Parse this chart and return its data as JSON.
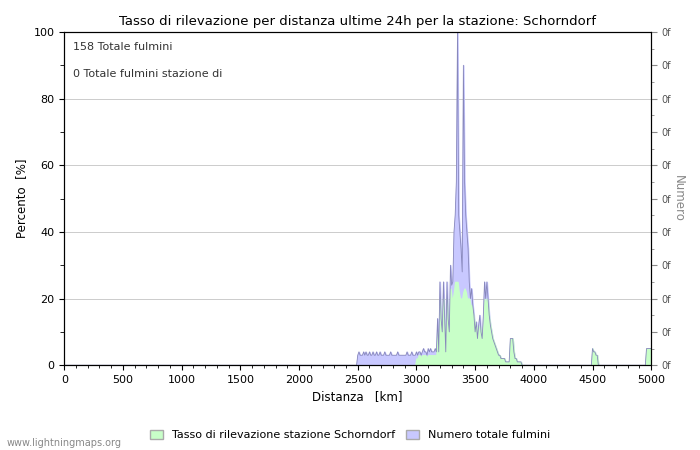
{
  "title": "Tasso di rilevazione per distanza ultime 24h per la stazione: Schorndorf",
  "xlabel": "Distanza   [km]",
  "ylabel_left": "Percento  [%]",
  "ylabel_right": "Numero",
  "annotation_line1": "158 Totale fulmini",
  "annotation_line2": "0 Totale fulmini stazione di",
  "xlim": [
    0,
    5000
  ],
  "ylim": [
    0,
    100
  ],
  "x_ticks": [
    0,
    500,
    1000,
    1500,
    2000,
    2500,
    3000,
    3500,
    4000,
    4500,
    5000
  ],
  "y_ticks_left": [
    0,
    20,
    40,
    60,
    80,
    100
  ],
  "legend_label_green": "Tasso di rilevazione stazione Schorndorf",
  "legend_label_blue": "Numero totale fulmini",
  "fill_color_blue": "#c8c8ff",
  "line_color_blue": "#8888bb",
  "fill_color_green": "#c8ffc8",
  "watermark": "www.lightningmaps.org",
  "background_color": "#ffffff",
  "grid_color": "#cccccc",
  "data_x": [
    2500,
    2510,
    2520,
    2530,
    2540,
    2550,
    2560,
    2570,
    2580,
    2590,
    2600,
    2610,
    2620,
    2630,
    2640,
    2650,
    2660,
    2670,
    2680,
    2690,
    2700,
    2710,
    2720,
    2730,
    2740,
    2750,
    2760,
    2770,
    2780,
    2790,
    2800,
    2810,
    2820,
    2830,
    2840,
    2850,
    2860,
    2870,
    2880,
    2890,
    2900,
    2910,
    2920,
    2930,
    2940,
    2950,
    2960,
    2970,
    2980,
    2990,
    3000,
    3010,
    3020,
    3030,
    3040,
    3050,
    3060,
    3070,
    3080,
    3090,
    3100,
    3110,
    3120,
    3130,
    3140,
    3150,
    3160,
    3170,
    3180,
    3190,
    3200,
    3210,
    3220,
    3230,
    3240,
    3250,
    3260,
    3270,
    3280,
    3290,
    3300,
    3310,
    3320,
    3330,
    3340,
    3350,
    3360,
    3370,
    3380,
    3390,
    3400,
    3410,
    3420,
    3430,
    3440,
    3450,
    3460,
    3470,
    3480,
    3490,
    3500,
    3510,
    3520,
    3530,
    3540,
    3550,
    3560,
    3570,
    3580,
    3590,
    3600,
    3610,
    3620,
    3630,
    3640,
    3650,
    3660,
    3670,
    3680,
    3690,
    3700,
    3710,
    3720,
    3730,
    3740,
    3750,
    3760,
    3770,
    3780,
    3790,
    3800,
    3810,
    3820,
    3830,
    3840,
    3850,
    3860,
    3870,
    3880,
    3890,
    3900,
    3910,
    3920,
    3930,
    4500,
    4510,
    4520,
    4530,
    4540,
    4960,
    4970,
    4980,
    4990,
    5000
  ],
  "data_y_line": [
    3,
    4,
    3,
    3,
    3,
    4,
    3,
    4,
    3,
    3,
    4,
    3,
    3,
    4,
    3,
    3,
    4,
    3,
    3,
    4,
    3,
    3,
    3,
    4,
    3,
    3,
    3,
    3,
    4,
    3,
    3,
    3,
    3,
    3,
    4,
    3,
    3,
    3,
    3,
    3,
    3,
    3,
    4,
    3,
    3,
    3,
    4,
    3,
    3,
    3,
    4,
    3,
    4,
    4,
    3,
    4,
    5,
    4,
    4,
    3,
    5,
    4,
    5,
    4,
    4,
    4,
    5,
    4,
    14,
    4,
    25,
    14,
    10,
    25,
    14,
    4,
    25,
    14,
    10,
    30,
    24,
    25,
    40,
    45,
    55,
    100,
    45,
    40,
    35,
    28,
    90,
    55,
    45,
    40,
    35,
    25,
    20,
    23,
    18,
    15,
    10,
    13,
    8,
    12,
    15,
    10,
    8,
    15,
    25,
    20,
    25,
    20,
    15,
    12,
    10,
    8,
    7,
    6,
    5,
    4,
    3,
    3,
    2,
    2,
    2,
    2,
    1,
    1,
    1,
    1,
    8,
    8,
    8,
    4,
    2,
    2,
    1,
    1,
    1,
    1,
    0,
    0,
    0,
    0,
    5,
    4,
    4,
    3,
    3,
    5,
    5,
    5,
    5,
    5
  ],
  "data_y_fill": [
    0,
    0,
    0,
    0,
    0,
    0,
    0,
    0,
    0,
    0,
    0,
    0,
    0,
    0,
    0,
    0,
    0,
    0,
    0,
    0,
    0,
    0,
    0,
    0,
    0,
    0,
    0,
    0,
    0,
    0,
    0,
    0,
    0,
    0,
    0,
    0,
    0,
    0,
    0,
    0,
    0,
    0,
    0,
    0,
    0,
    0,
    0,
    0,
    0,
    0,
    2,
    2,
    3,
    3,
    2,
    3,
    3,
    3,
    3,
    2,
    3,
    3,
    3,
    3,
    3,
    3,
    3,
    3,
    10,
    3,
    20,
    10,
    8,
    20,
    10,
    3,
    20,
    10,
    8,
    23,
    20,
    20,
    22,
    25,
    25,
    25,
    22,
    20,
    20,
    20,
    22,
    23,
    22,
    20,
    20,
    20,
    18,
    18,
    16,
    14,
    12,
    12,
    10,
    10,
    12,
    10,
    8,
    12,
    20,
    18,
    20,
    18,
    14,
    12,
    10,
    8,
    7,
    6,
    5,
    4,
    3,
    3,
    2,
    2,
    2,
    2,
    1,
    1,
    1,
    1,
    8,
    8,
    8,
    4,
    2,
    2,
    1,
    1,
    1,
    1,
    0,
    0,
    0,
    0,
    5,
    4,
    4,
    3,
    3,
    5,
    5,
    5,
    5,
    5
  ]
}
